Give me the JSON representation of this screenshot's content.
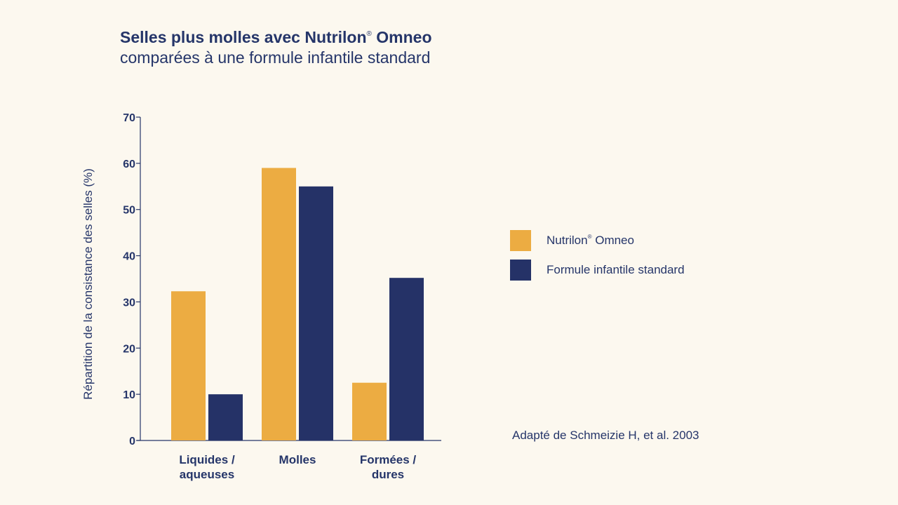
{
  "chart_data": {
    "type": "bar",
    "title_main": "Selles plus molles avec Nutrilon",
    "title_mark": "®",
    "title_end": " Omneo",
    "subtitle": "comparées à une formule infantile standard",
    "ylabel": "Répartition de la consistance des selles (%)",
    "xlabel": "",
    "ylim": [
      0,
      70
    ],
    "yticks": [
      0,
      10,
      20,
      30,
      40,
      50,
      60,
      70
    ],
    "categories": [
      [
        "Liquides /",
        "aqueuses"
      ],
      [
        "Molles"
      ],
      [
        "Formées /",
        "dures"
      ]
    ],
    "series": [
      {
        "name": "Nutrilon",
        "name_mark": "®",
        "name_end": " Omneo",
        "color": "#ecac42",
        "values": [
          32.3,
          59,
          12.5
        ]
      },
      {
        "name": "Formule infantile standard",
        "name_mark": "",
        "name_end": "",
        "color": "#253267",
        "values": [
          10,
          55,
          35.2
        ]
      }
    ],
    "legend_position": "right",
    "grid": false,
    "annotation": "Adapté de Schmeizie H, et al. 2003"
  }
}
